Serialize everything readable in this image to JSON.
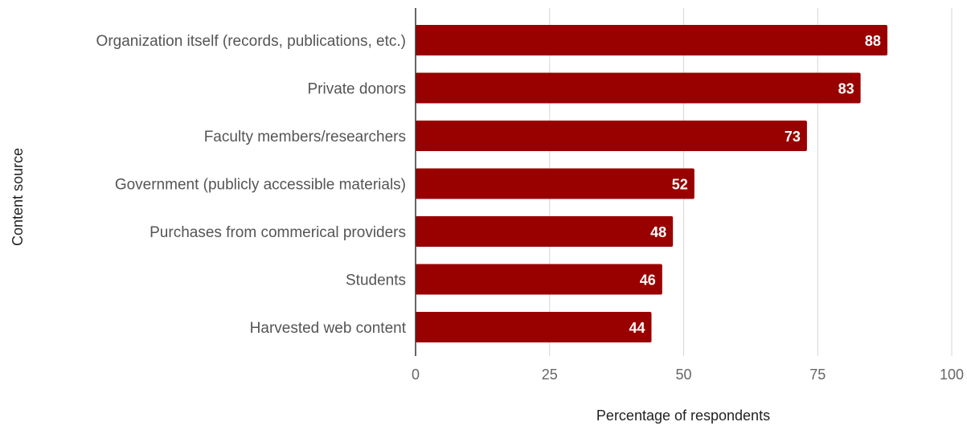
{
  "chart_data": {
    "type": "bar",
    "orientation": "horizontal",
    "categories": [
      "Organization itself (records, publications, etc.)",
      "Private donors",
      "Faculty members/researchers",
      "Government (publicly accessible materials)",
      "Purchases from commerical providers",
      "Students",
      "Harvested web content"
    ],
    "values": [
      88,
      83,
      73,
      52,
      48,
      46,
      44
    ],
    "data_labels": [
      "88",
      "83",
      "73",
      "52",
      "48",
      "46",
      "44"
    ],
    "xlabel": "Percentage of respondents",
    "ylabel": "Content source",
    "xlim": [
      0,
      100
    ],
    "xticks": [
      "0",
      "25",
      "50",
      "75",
      "100"
    ],
    "grid": "vertical",
    "legend": "none",
    "bar_color": "#990000"
  }
}
